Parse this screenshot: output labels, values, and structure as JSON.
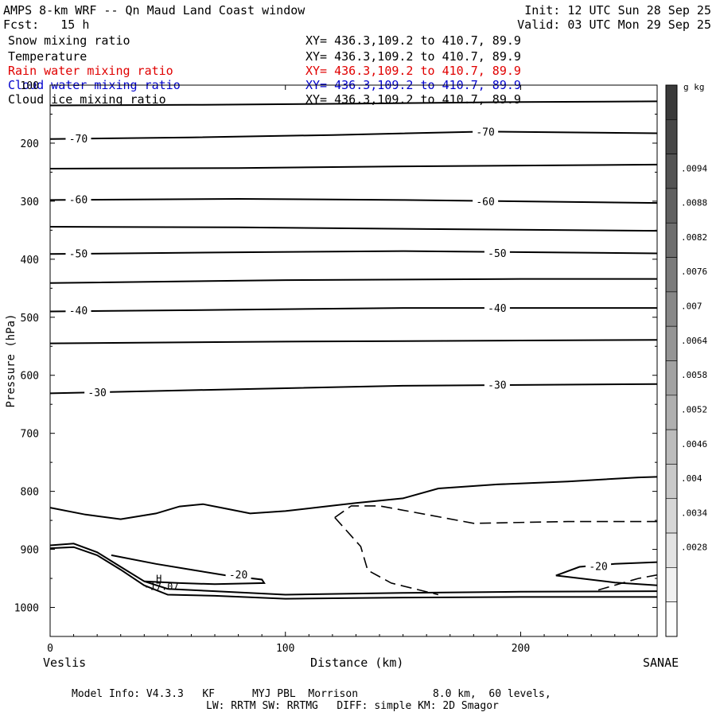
{
  "header": {
    "title": "AMPS 8-km WRF -- Qn Maud Land Coast window",
    "init": "Init: 12 UTC Sun 28 Sep 25",
    "fcst": "Fcst:   15 h",
    "valid": "Valid: 03 UTC Mon 29 Sep 25"
  },
  "fields": [
    {
      "name": "Snow mixing ratio",
      "xy": "XY= 436.3,109.2 to 410.7, 89.9",
      "color": "#000000"
    },
    {
      "name": "Temperature",
      "xy": "XY= 436.3,109.2 to 410.7, 89.9",
      "color": "#000000"
    },
    {
      "name": "Rain water mixing ratio",
      "xy": "XY= 436.3,109.2 to 410.7, 89.9",
      "color": "#e00000"
    },
    {
      "name": "Cloud water mixing ratio",
      "xy": "XY= 436.3,109.2 to 410.7, 89.9",
      "color": "#0000cc"
    },
    {
      "name": "Cloud ice mixing ratio",
      "xy": "XY= 436.3,109.2 to 410.7, 89.9",
      "color": "#000000"
    }
  ],
  "footer": {
    "model_info": "Model Info: V4.3.3   KF      MYJ PBL  Morrison            8.0 km,  60 levels,",
    "physics": "LW: RRTM SW: RRTMG   DIFF: simple KM: 2D Smagor"
  },
  "chart_data": {
    "type": "line",
    "title": "AMPS 8-km WRF -- Qn Maud Land Coast window",
    "xlabel": "Distance (km)",
    "ylabel": "Pressure (hPa)",
    "xlim": [
      0,
      258
    ],
    "ylim": [
      1050,
      100
    ],
    "x_ticks": [
      0,
      100,
      200
    ],
    "y_ticks": [
      100,
      200,
      300,
      400,
      500,
      600,
      700,
      800,
      900,
      1000
    ],
    "endpoint_left": "Veslis",
    "endpoint_right": "SANAE",
    "colorbar_unit": "g kg",
    "colorbar_unit_exp": "-1",
    "colorbar_ticks": [
      ".0094",
      ".0088",
      ".0082",
      ".0076",
      ".007",
      ".0064",
      ".0058",
      ".0052",
      ".0046",
      ".004",
      ".0034",
      ".0028"
    ],
    "colorbar_shades": [
      "#3a3a3a",
      "#474747",
      "#545454",
      "#616161",
      "#6e6e6e",
      "#7b7b7b",
      "#888888",
      "#959595",
      "#a2a2a2",
      "#afafaf",
      "#bcbcbc",
      "#c9c9c9",
      "#d6d6d6",
      "#e3e3e3",
      "#f0f0f0",
      "#fdfdfd"
    ],
    "isotherms": [
      {
        "label": "",
        "points": [
          [
            0,
            135
          ],
          [
            60,
            134
          ],
          [
            130,
            132
          ],
          [
            200,
            129
          ],
          [
            258,
            128
          ]
        ]
      },
      {
        "label": "-70",
        "label_positions": [
          [
            12,
            192
          ],
          [
            185,
            180
          ]
        ],
        "points": [
          [
            0,
            193
          ],
          [
            60,
            190
          ],
          [
            120,
            186
          ],
          [
            185,
            180
          ],
          [
            258,
            183
          ]
        ]
      },
      {
        "label": "",
        "points": [
          [
            0,
            244
          ],
          [
            80,
            243
          ],
          [
            150,
            240
          ],
          [
            258,
            237
          ]
        ]
      },
      {
        "label": "-60",
        "label_positions": [
          [
            12,
            297
          ],
          [
            185,
            300
          ]
        ],
        "points": [
          [
            0,
            298
          ],
          [
            80,
            296
          ],
          [
            150,
            298
          ],
          [
            258,
            303
          ]
        ]
      },
      {
        "label": "",
        "points": [
          [
            0,
            344
          ],
          [
            80,
            345
          ],
          [
            160,
            348
          ],
          [
            258,
            351
          ]
        ]
      },
      {
        "label": "-50",
        "label_positions": [
          [
            12,
            390
          ],
          [
            190,
            389
          ]
        ],
        "points": [
          [
            0,
            391
          ],
          [
            80,
            388
          ],
          [
            150,
            386
          ],
          [
            258,
            390
          ]
        ]
      },
      {
        "label": "",
        "points": [
          [
            0,
            441
          ],
          [
            100,
            436
          ],
          [
            200,
            434
          ],
          [
            258,
            434
          ]
        ]
      },
      {
        "label": "-40",
        "label_positions": [
          [
            12,
            488
          ],
          [
            190,
            484
          ]
        ],
        "points": [
          [
            0,
            490
          ],
          [
            80,
            487
          ],
          [
            150,
            484
          ],
          [
            258,
            484
          ]
        ]
      },
      {
        "label": "",
        "points": [
          [
            0,
            545
          ],
          [
            100,
            542
          ],
          [
            200,
            540
          ],
          [
            258,
            539
          ]
        ]
      },
      {
        "label": "-30",
        "label_positions": [
          [
            20,
            629
          ],
          [
            190,
            616
          ]
        ],
        "points": [
          [
            0,
            631
          ],
          [
            80,
            624
          ],
          [
            150,
            618
          ],
          [
            258,
            615
          ]
        ]
      },
      {
        "label": "",
        "points": [
          [
            0,
            828
          ],
          [
            15,
            840
          ],
          [
            30,
            848
          ],
          [
            45,
            838
          ],
          [
            55,
            826
          ],
          [
            65,
            822
          ],
          [
            75,
            830
          ],
          [
            85,
            838
          ],
          [
            100,
            834
          ],
          [
            130,
            820
          ],
          [
            150,
            812
          ],
          [
            165,
            795
          ],
          [
            190,
            788
          ],
          [
            220,
            783
          ],
          [
            250,
            776
          ],
          [
            258,
            775
          ]
        ]
      },
      {
        "label": "-20",
        "label_positions": [
          [
            80,
            943
          ]
        ],
        "points": [
          [
            26,
            910
          ],
          [
            45,
            925
          ],
          [
            60,
            935
          ],
          [
            75,
            945
          ],
          [
            90,
            952
          ],
          [
            91,
            958
          ],
          [
            70,
            960
          ],
          [
            55,
            958
          ],
          [
            40,
            955
          ]
        ]
      },
      {
        "label": "-20",
        "label_positions": [
          [
            233,
            929
          ]
        ],
        "points": [
          [
            215,
            945
          ],
          [
            225,
            930
          ],
          [
            240,
            925
          ],
          [
            258,
            922
          ]
        ]
      },
      {
        "label": "",
        "points": [
          [
            0,
            893
          ],
          [
            10,
            890
          ],
          [
            20,
            905
          ],
          [
            30,
            930
          ],
          [
            40,
            955
          ],
          [
            50,
            968
          ],
          [
            70,
            972
          ],
          [
            100,
            978
          ],
          [
            150,
            975
          ],
          [
            200,
            973
          ],
          [
            258,
            972
          ]
        ]
      },
      {
        "label": "",
        "points": [
          [
            0,
            898
          ],
          [
            10,
            896
          ],
          [
            20,
            910
          ],
          [
            30,
            935
          ],
          [
            40,
            962
          ],
          [
            50,
            978
          ],
          [
            70,
            980
          ],
          [
            100,
            985
          ],
          [
            150,
            983
          ],
          [
            200,
            982
          ],
          [
            258,
            982
          ]
        ]
      },
      {
        "label": "",
        "points": [
          [
            215,
            945
          ],
          [
            240,
            957
          ],
          [
            258,
            962
          ]
        ]
      }
    ],
    "dashed_contours": [
      {
        "label": "",
        "points": [
          [
            121,
            845
          ],
          [
            128,
            825
          ],
          [
            140,
            825
          ],
          [
            160,
            840
          ],
          [
            180,
            855
          ],
          [
            220,
            852
          ],
          [
            258,
            852
          ]
        ]
      },
      {
        "label": "",
        "points": [
          [
            121,
            845
          ],
          [
            132,
            895
          ],
          [
            135,
            936
          ],
          [
            145,
            958
          ],
          [
            165,
            978
          ]
        ]
      },
      {
        "label": "",
        "points": [
          [
            233,
            970
          ],
          [
            250,
            950
          ],
          [
            258,
            944
          ]
        ]
      }
    ],
    "annotations": [
      {
        "text": "H",
        "x": 45,
        "y": 956
      },
      {
        "text": "-17.07",
        "x": 40,
        "y": 970
      }
    ]
  }
}
